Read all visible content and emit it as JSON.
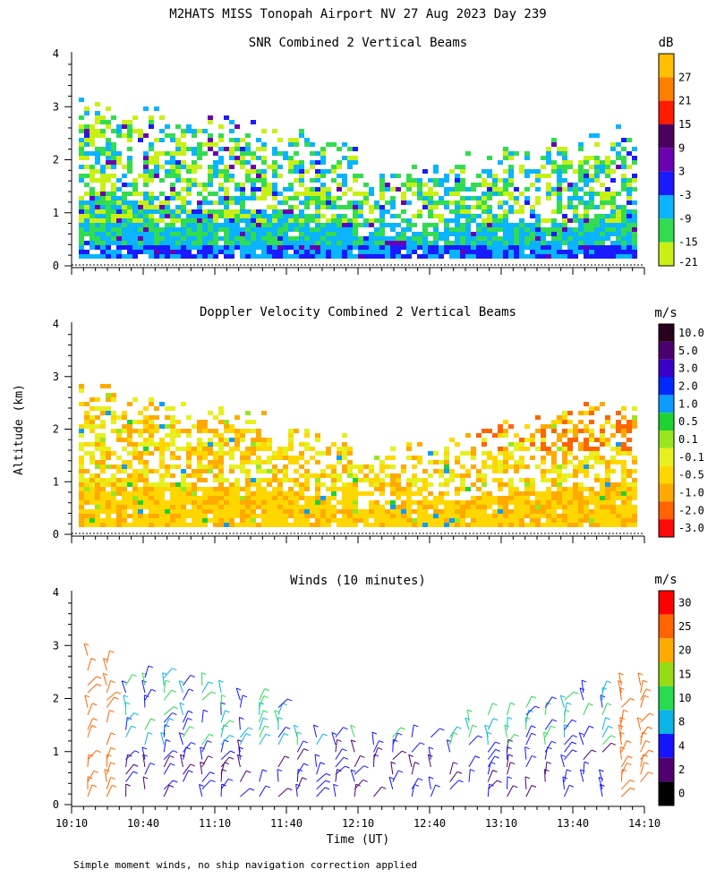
{
  "title": "M2HATS MISS Tonopah Airport NV  27 Aug 2023 Day 239",
  "ylabel": "Altitude (km)",
  "xlabel": "Time (UT)",
  "footnote": "Simple moment winds, no ship navigation correction applied",
  "x_ticks": [
    "10:10",
    "10:40",
    "11:10",
    "11:40",
    "12:10",
    "12:40",
    "13:10",
    "13:40",
    "14:10"
  ],
  "chart_data": [
    {
      "type": "heatmap",
      "title": "SNR Combined 2 Vertical Beams",
      "ylim": [
        0,
        4
      ],
      "y_ticks": [
        "0",
        "1",
        "2",
        "3",
        "4"
      ],
      "colorbar": {
        "unit": "dB",
        "labels": [
          "27",
          "21",
          "15",
          "9",
          "3",
          "-3",
          "-9",
          "-15",
          "-21"
        ],
        "colors": [
          "#ffbf00",
          "#ff7f00",
          "#ff1a00",
          "#4b0060",
          "#6a00b0",
          "#1a1aff",
          "#0ab4ff",
          "#32dc50",
          "#c8f014"
        ]
      }
    },
    {
      "type": "heatmap",
      "title": "Doppler Velocity Combined 2 Vertical Beams",
      "ylim": [
        0,
        4
      ],
      "y_ticks": [
        "0",
        "1",
        "2",
        "3",
        "4"
      ],
      "colorbar": {
        "unit": "m/s",
        "labels": [
          "10.0",
          "5.0",
          "3.0",
          "2.0",
          "1.0",
          "0.5",
          "0.1",
          "-0.1",
          "-0.5",
          "-1.0",
          "-2.0",
          "-3.0"
        ],
        "colors": [
          "#28001e",
          "#4b0070",
          "#3a00c8",
          "#0028ff",
          "#0a9cff",
          "#1ed232",
          "#9ae61e",
          "#e6f01e",
          "#ffd700",
          "#ffaa00",
          "#ff6400",
          "#ff0a0a"
        ]
      }
    },
    {
      "type": "scatter",
      "title": "Winds (10 minutes)",
      "ylim": [
        0,
        4
      ],
      "y_ticks": [
        "0",
        "1",
        "2",
        "3",
        "4"
      ],
      "colorbar": {
        "unit": "m/s",
        "labels": [
          "30",
          "25",
          "20",
          "15",
          "10",
          "8",
          "4",
          "2",
          "0"
        ],
        "colors": [
          "#ff0000",
          "#ff6400",
          "#ffaa00",
          "#96dc14",
          "#28dc50",
          "#0ab4e6",
          "#1414ff",
          "#50006e",
          "#000000"
        ]
      }
    }
  ]
}
